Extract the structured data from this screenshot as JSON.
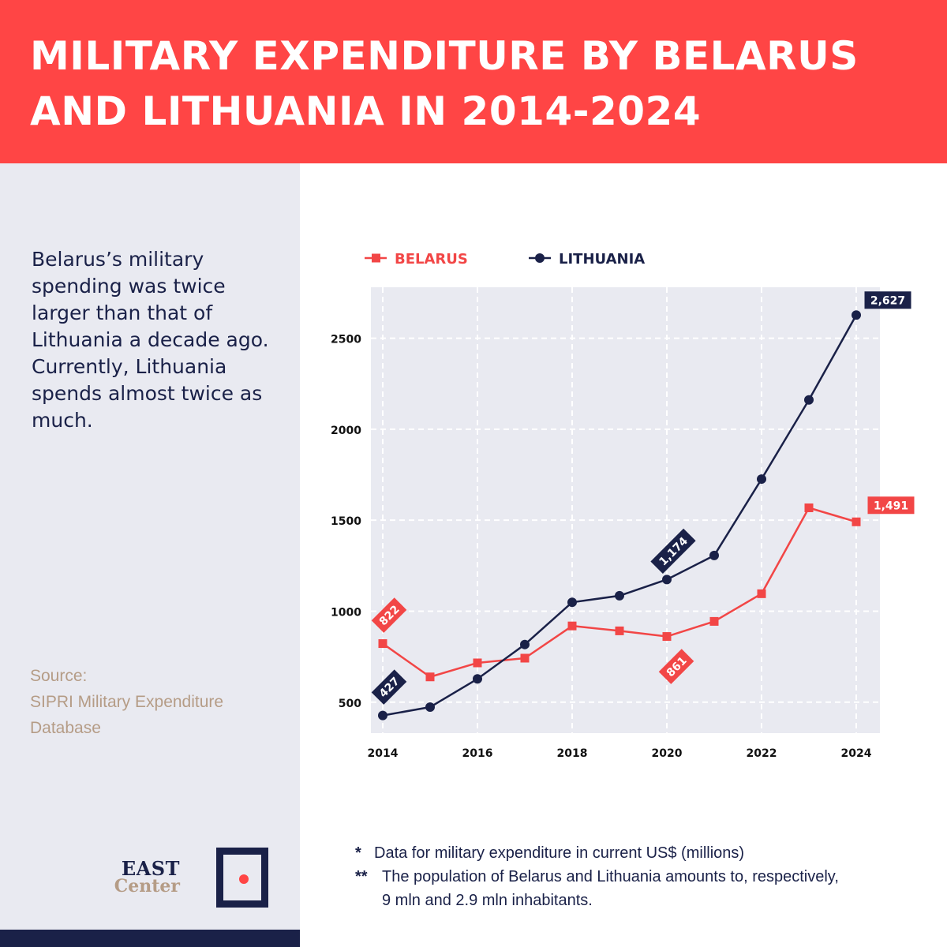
{
  "header": {
    "title": "MILITARY EXPENDITURE BY BELARUS AND LITHUANIA IN 2014-2024"
  },
  "sidebar": {
    "summary": "Belarus’s military spending was twice larger than that of Lithuania a decade ago. Currently, Lithuania spends almost twice as much.",
    "source_label": "Source:",
    "source_text": "SIPRI Military Expenditure Database"
  },
  "logo": {
    "line1": "EAST",
    "line2": "Center"
  },
  "notes": {
    "note1_marker": "*",
    "note1": "Data for military expenditure in current US$ (millions)",
    "note2_marker": "**",
    "note2_line1": "The population of Belarus and Lithuania amounts to, respectively,",
    "note2_line2": "9 mln and 2.9 mln inhabitants."
  },
  "colors": {
    "belarus": "#f24646",
    "lithuania": "#1a2148",
    "banner": "#ff4545",
    "plot_bg": "#e9eaf1",
    "source": "#b59c86"
  },
  "chart_data": {
    "type": "line",
    "title": "",
    "xlabel": "",
    "ylabel": "",
    "x": [
      2014,
      2015,
      2016,
      2017,
      2018,
      2019,
      2020,
      2021,
      2022,
      2023,
      2024
    ],
    "xticks": [
      "2014",
      "2016",
      "2018",
      "2020",
      "2022",
      "2024"
    ],
    "xtick_values": [
      2014,
      2016,
      2018,
      2020,
      2022,
      2024
    ],
    "yticks": [
      "500",
      "1000",
      "1500",
      "2000",
      "2500"
    ],
    "ytick_values": [
      500,
      1000,
      1500,
      2000,
      2500
    ],
    "xlim": [
      2013.75,
      2024.5
    ],
    "ylim": [
      330,
      2780
    ],
    "grid": true,
    "legend_position": "top-left",
    "series": [
      {
        "name": "BELARUS",
        "marker": "square",
        "color": "#f24646",
        "values": [
          822,
          639,
          716,
          742,
          919,
          892,
          861,
          944,
          1096,
          1568,
          1491
        ],
        "labels": [
          {
            "index": 0,
            "text": "822",
            "placement": "above",
            "rotated": true
          },
          {
            "index": 6,
            "text": "861",
            "placement": "below",
            "rotated": true
          },
          {
            "index": 10,
            "text": "1,491",
            "placement": "right",
            "rotated": false
          }
        ]
      },
      {
        "name": "LITHUANIA",
        "marker": "circle",
        "color": "#1a2148",
        "values": [
          427,
          473,
          628,
          817,
          1049,
          1085,
          1174,
          1306,
          1726,
          2161,
          2627
        ],
        "labels": [
          {
            "index": 0,
            "text": "427",
            "placement": "above",
            "rotated": true
          },
          {
            "index": 6,
            "text": "1,174",
            "placement": "above",
            "rotated": true
          },
          {
            "index": 10,
            "text": "2,627",
            "placement": "above-right",
            "rotated": false
          }
        ]
      }
    ]
  }
}
